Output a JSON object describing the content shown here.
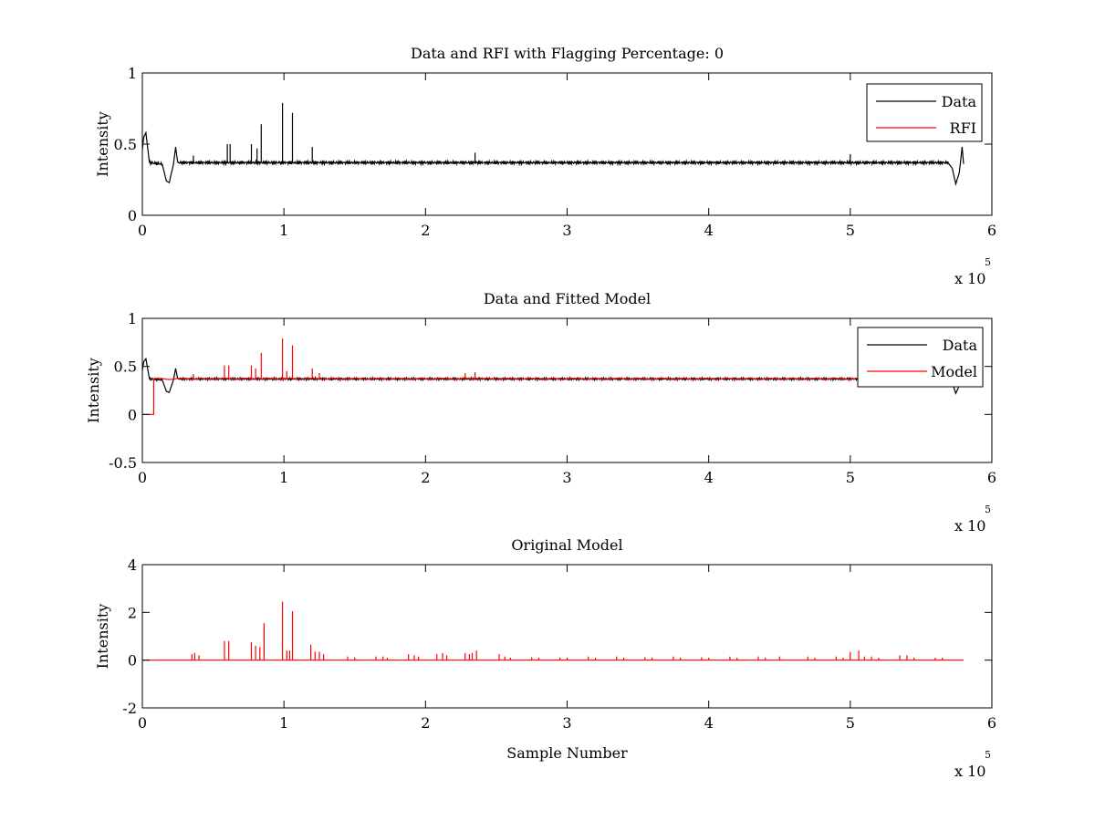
{
  "chart_data": [
    {
      "type": "line",
      "title": "Data and RFI with Flagging Percentage: 0",
      "xlabel": "",
      "ylabel": "Intensity",
      "xlim": [
        0,
        6
      ],
      "ylim": [
        0,
        1
      ],
      "xticks": [
        "0",
        "1",
        "2",
        "3",
        "4",
        "5",
        "6"
      ],
      "yticks": [
        "0",
        "0.5",
        "1"
      ],
      "x_exponent": {
        "base": "x 10",
        "power": "5"
      },
      "legend": {
        "placement": "top-right",
        "entries": [
          "Data",
          "RFI"
        ]
      },
      "grid": false,
      "series": [
        {
          "name": "Data",
          "color": "#000000",
          "baseline": 0.37,
          "points": [
            [
              0.0,
              0.46
            ],
            [
              0.01,
              0.55
            ],
            [
              0.025,
              0.58
            ],
            [
              0.05,
              0.37
            ],
            [
              0.14,
              0.36
            ],
            [
              0.17,
              0.24
            ],
            [
              0.19,
              0.23
            ],
            [
              0.22,
              0.36
            ],
            [
              0.235,
              0.48
            ],
            [
              0.25,
              0.37
            ],
            [
              5.69,
              0.37
            ],
            [
              5.72,
              0.33
            ],
            [
              5.745,
              0.22
            ],
            [
              5.77,
              0.3
            ],
            [
              5.79,
              0.48
            ],
            [
              5.8,
              0.36
            ]
          ],
          "spikes": [
            [
              0.6,
              0.5
            ],
            [
              0.62,
              0.5
            ],
            [
              0.77,
              0.5
            ],
            [
              0.81,
              0.47
            ],
            [
              0.84,
              0.64
            ],
            [
              0.99,
              0.79
            ],
            [
              1.06,
              0.72
            ],
            [
              1.2,
              0.48
            ],
            [
              0.36,
              0.42
            ],
            [
              2.35,
              0.44
            ],
            [
              5.0,
              0.43
            ]
          ]
        },
        {
          "name": "RFI",
          "color": "#ff0000",
          "points": []
        }
      ]
    },
    {
      "type": "line",
      "title": "Data and Fitted Model",
      "xlabel": "",
      "ylabel": "Intensity",
      "xlim": [
        0,
        6
      ],
      "ylim": [
        -0.5,
        1
      ],
      "xticks": [
        "0",
        "1",
        "2",
        "3",
        "4",
        "5",
        "6"
      ],
      "yticks": [
        "-0.5",
        "0",
        "0.5",
        "1"
      ],
      "x_exponent": {
        "base": "x 10",
        "power": "5"
      },
      "legend": {
        "placement": "top-right",
        "entries": [
          "Data",
          "Model"
        ]
      },
      "grid": false,
      "series": [
        {
          "name": "Data",
          "color": "#000000",
          "baseline": 0.37,
          "points": [
            [
              0.0,
              0.46
            ],
            [
              0.01,
              0.55
            ],
            [
              0.025,
              0.58
            ],
            [
              0.05,
              0.37
            ],
            [
              0.14,
              0.36
            ],
            [
              0.17,
              0.24
            ],
            [
              0.19,
              0.23
            ],
            [
              0.22,
              0.36
            ],
            [
              0.235,
              0.48
            ],
            [
              0.25,
              0.37
            ],
            [
              5.69,
              0.37
            ],
            [
              5.72,
              0.33
            ],
            [
              5.745,
              0.22
            ],
            [
              5.77,
              0.3
            ],
            [
              5.79,
              0.48
            ],
            [
              5.8,
              0.36
            ]
          ],
          "spikes": []
        },
        {
          "name": "Model",
          "color": "#ff0000",
          "baseline": 0.37,
          "points": [
            [
              0.0,
              0.0
            ],
            [
              0.08,
              0.0
            ],
            [
              0.08,
              0.37
            ],
            [
              5.8,
              0.37
            ]
          ],
          "spikes": [
            [
              0.36,
              0.42
            ],
            [
              0.58,
              0.51
            ],
            [
              0.61,
              0.51
            ],
            [
              0.77,
              0.51
            ],
            [
              0.8,
              0.48
            ],
            [
              0.84,
              0.64
            ],
            [
              0.99,
              0.79
            ],
            [
              1.02,
              0.45
            ],
            [
              1.06,
              0.72
            ],
            [
              1.2,
              0.48
            ],
            [
              1.25,
              0.43
            ],
            [
              2.28,
              0.43
            ],
            [
              2.35,
              0.44
            ]
          ]
        }
      ]
    },
    {
      "type": "line",
      "title": "Original Model",
      "xlabel": "Sample Number",
      "ylabel": "Intensity",
      "xlim": [
        0,
        6
      ],
      "ylim": [
        -2,
        4
      ],
      "xticks": [
        "0",
        "1",
        "2",
        "3",
        "4",
        "5",
        "6"
      ],
      "yticks": [
        "-2",
        "0",
        "2",
        "4"
      ],
      "x_exponent": {
        "base": "x 10",
        "power": "5"
      },
      "legend": null,
      "grid": false,
      "series": [
        {
          "name": "",
          "color": "#ff0000",
          "baseline": 0.0,
          "points": [
            [
              0.0,
              0.0
            ],
            [
              5.8,
              0.0
            ]
          ],
          "spikes": [
            [
              0.35,
              0.25
            ],
            [
              0.37,
              0.3
            ],
            [
              0.4,
              0.2
            ],
            [
              0.58,
              0.8
            ],
            [
              0.61,
              0.8
            ],
            [
              0.77,
              0.75
            ],
            [
              0.8,
              0.6
            ],
            [
              0.83,
              0.55
            ],
            [
              0.86,
              1.55
            ],
            [
              0.99,
              2.45
            ],
            [
              1.02,
              0.4
            ],
            [
              1.04,
              0.4
            ],
            [
              1.06,
              2.05
            ],
            [
              1.19,
              0.65
            ],
            [
              1.22,
              0.35
            ],
            [
              1.25,
              0.35
            ],
            [
              1.28,
              0.25
            ],
            [
              1.45,
              0.15
            ],
            [
              1.5,
              0.12
            ],
            [
              1.65,
              0.15
            ],
            [
              1.7,
              0.15
            ],
            [
              1.73,
              0.1
            ],
            [
              1.88,
              0.25
            ],
            [
              1.92,
              0.2
            ],
            [
              1.95,
              0.15
            ],
            [
              2.08,
              0.25
            ],
            [
              2.12,
              0.3
            ],
            [
              2.15,
              0.2
            ],
            [
              2.28,
              0.3
            ],
            [
              2.31,
              0.25
            ],
            [
              2.33,
              0.3
            ],
            [
              2.36,
              0.4
            ],
            [
              2.52,
              0.25
            ],
            [
              2.56,
              0.15
            ],
            [
              2.6,
              0.1
            ],
            [
              2.75,
              0.12
            ],
            [
              2.8,
              0.1
            ],
            [
              2.95,
              0.1
            ],
            [
              3.0,
              0.1
            ],
            [
              3.15,
              0.15
            ],
            [
              3.2,
              0.1
            ],
            [
              3.35,
              0.15
            ],
            [
              3.4,
              0.1
            ],
            [
              3.55,
              0.12
            ],
            [
              3.6,
              0.1
            ],
            [
              3.75,
              0.15
            ],
            [
              3.8,
              0.1
            ],
            [
              3.95,
              0.12
            ],
            [
              4.0,
              0.1
            ],
            [
              4.15,
              0.15
            ],
            [
              4.2,
              0.1
            ],
            [
              4.35,
              0.15
            ],
            [
              4.4,
              0.1
            ],
            [
              4.5,
              0.15
            ],
            [
              4.7,
              0.15
            ],
            [
              4.75,
              0.1
            ],
            [
              4.9,
              0.15
            ],
            [
              4.95,
              0.1
            ],
            [
              5.0,
              0.35
            ],
            [
              5.06,
              0.4
            ],
            [
              5.1,
              0.15
            ],
            [
              5.15,
              0.15
            ],
            [
              5.2,
              0.1
            ],
            [
              5.35,
              0.2
            ],
            [
              5.4,
              0.2
            ],
            [
              5.45,
              0.1
            ],
            [
              5.6,
              0.1
            ],
            [
              5.65,
              0.1
            ]
          ]
        }
      ]
    }
  ]
}
